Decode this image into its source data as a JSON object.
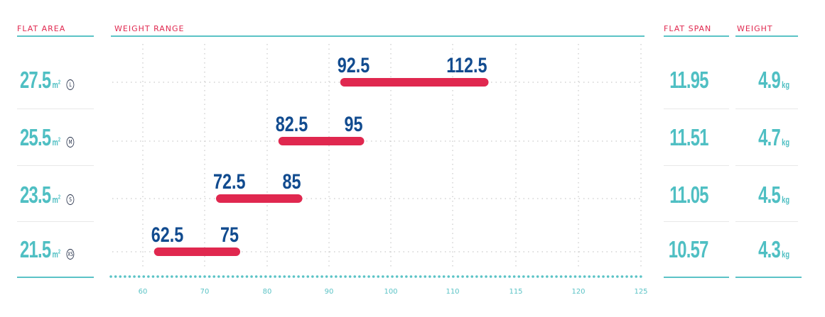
{
  "headers": {
    "flat_area": "FLAT AREA",
    "weight_range": "WEIGHT RANGE",
    "flat_span": "FLAT SPAN",
    "weight": "WEIGHT"
  },
  "colors": {
    "accent": "#e0284f",
    "teal": "#5bc3c6",
    "navy": "#114b8f"
  },
  "chart_data": {
    "type": "bar",
    "xlim": [
      55,
      125
    ],
    "x_ticks": [
      60,
      70,
      80,
      90,
      100,
      110,
      115,
      120,
      125
    ],
    "grid": true,
    "rows": [
      {
        "area": "27.5",
        "area_unit": "m",
        "size": "L",
        "min": 92.5,
        "max": 112.5,
        "min_label": "92.5",
        "max_label": "112.5",
        "span": "11.95",
        "weight": "4.9",
        "weight_unit": "kg"
      },
      {
        "area": "25.5",
        "area_unit": "m",
        "size": "M",
        "min": 82.5,
        "max": 95,
        "min_label": "82.5",
        "max_label": "95",
        "span": "11.51",
        "weight": "4.7",
        "weight_unit": "kg"
      },
      {
        "area": "23.5",
        "area_unit": "m",
        "size": "S",
        "min": 72.5,
        "max": 85,
        "min_label": "72.5",
        "max_label": "85",
        "span": "11.05",
        "weight": "4.5",
        "weight_unit": "kg"
      },
      {
        "area": "21.5",
        "area_unit": "m",
        "size": "XS",
        "min": 62.5,
        "max": 75,
        "min_label": "62.5",
        "max_label": "75",
        "span": "10.57",
        "weight": "4.3",
        "weight_unit": "kg"
      }
    ]
  }
}
